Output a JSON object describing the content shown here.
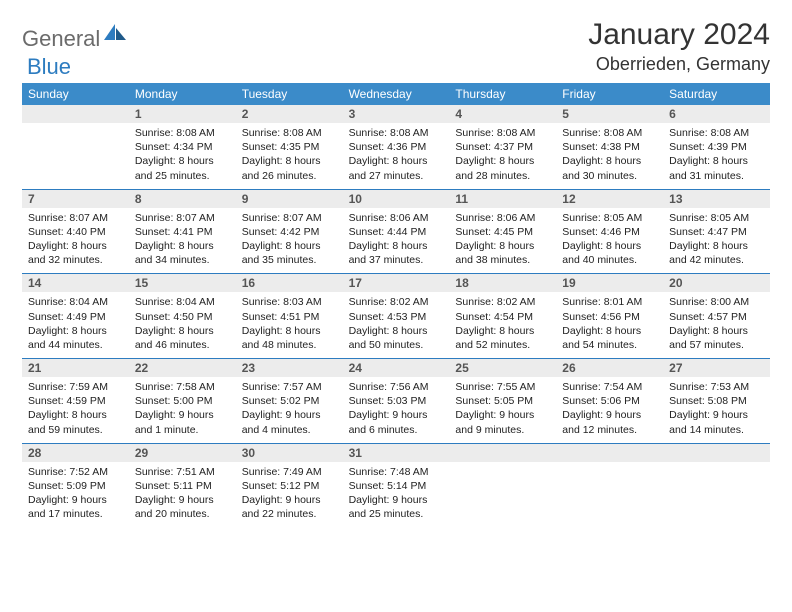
{
  "brand": {
    "part1": "General",
    "part2": "Blue"
  },
  "title": "January 2024",
  "location": "Oberrieden, Germany",
  "colors": {
    "header_bg": "#3b8bc9",
    "accent": "#2d7cc0",
    "daynum_bg": "#ececec",
    "text": "#222222",
    "logo_gray": "#6b6b6b"
  },
  "weekdays": [
    "Sunday",
    "Monday",
    "Tuesday",
    "Wednesday",
    "Thursday",
    "Friday",
    "Saturday"
  ],
  "weeks": [
    [
      {
        "num": "",
        "lines": []
      },
      {
        "num": "1",
        "lines": [
          "Sunrise: 8:08 AM",
          "Sunset: 4:34 PM",
          "Daylight: 8 hours",
          "and 25 minutes."
        ]
      },
      {
        "num": "2",
        "lines": [
          "Sunrise: 8:08 AM",
          "Sunset: 4:35 PM",
          "Daylight: 8 hours",
          "and 26 minutes."
        ]
      },
      {
        "num": "3",
        "lines": [
          "Sunrise: 8:08 AM",
          "Sunset: 4:36 PM",
          "Daylight: 8 hours",
          "and 27 minutes."
        ]
      },
      {
        "num": "4",
        "lines": [
          "Sunrise: 8:08 AM",
          "Sunset: 4:37 PM",
          "Daylight: 8 hours",
          "and 28 minutes."
        ]
      },
      {
        "num": "5",
        "lines": [
          "Sunrise: 8:08 AM",
          "Sunset: 4:38 PM",
          "Daylight: 8 hours",
          "and 30 minutes."
        ]
      },
      {
        "num": "6",
        "lines": [
          "Sunrise: 8:08 AM",
          "Sunset: 4:39 PM",
          "Daylight: 8 hours",
          "and 31 minutes."
        ]
      }
    ],
    [
      {
        "num": "7",
        "lines": [
          "Sunrise: 8:07 AM",
          "Sunset: 4:40 PM",
          "Daylight: 8 hours",
          "and 32 minutes."
        ]
      },
      {
        "num": "8",
        "lines": [
          "Sunrise: 8:07 AM",
          "Sunset: 4:41 PM",
          "Daylight: 8 hours",
          "and 34 minutes."
        ]
      },
      {
        "num": "9",
        "lines": [
          "Sunrise: 8:07 AM",
          "Sunset: 4:42 PM",
          "Daylight: 8 hours",
          "and 35 minutes."
        ]
      },
      {
        "num": "10",
        "lines": [
          "Sunrise: 8:06 AM",
          "Sunset: 4:44 PM",
          "Daylight: 8 hours",
          "and 37 minutes."
        ]
      },
      {
        "num": "11",
        "lines": [
          "Sunrise: 8:06 AM",
          "Sunset: 4:45 PM",
          "Daylight: 8 hours",
          "and 38 minutes."
        ]
      },
      {
        "num": "12",
        "lines": [
          "Sunrise: 8:05 AM",
          "Sunset: 4:46 PM",
          "Daylight: 8 hours",
          "and 40 minutes."
        ]
      },
      {
        "num": "13",
        "lines": [
          "Sunrise: 8:05 AM",
          "Sunset: 4:47 PM",
          "Daylight: 8 hours",
          "and 42 minutes."
        ]
      }
    ],
    [
      {
        "num": "14",
        "lines": [
          "Sunrise: 8:04 AM",
          "Sunset: 4:49 PM",
          "Daylight: 8 hours",
          "and 44 minutes."
        ]
      },
      {
        "num": "15",
        "lines": [
          "Sunrise: 8:04 AM",
          "Sunset: 4:50 PM",
          "Daylight: 8 hours",
          "and 46 minutes."
        ]
      },
      {
        "num": "16",
        "lines": [
          "Sunrise: 8:03 AM",
          "Sunset: 4:51 PM",
          "Daylight: 8 hours",
          "and 48 minutes."
        ]
      },
      {
        "num": "17",
        "lines": [
          "Sunrise: 8:02 AM",
          "Sunset: 4:53 PM",
          "Daylight: 8 hours",
          "and 50 minutes."
        ]
      },
      {
        "num": "18",
        "lines": [
          "Sunrise: 8:02 AM",
          "Sunset: 4:54 PM",
          "Daylight: 8 hours",
          "and 52 minutes."
        ]
      },
      {
        "num": "19",
        "lines": [
          "Sunrise: 8:01 AM",
          "Sunset: 4:56 PM",
          "Daylight: 8 hours",
          "and 54 minutes."
        ]
      },
      {
        "num": "20",
        "lines": [
          "Sunrise: 8:00 AM",
          "Sunset: 4:57 PM",
          "Daylight: 8 hours",
          "and 57 minutes."
        ]
      }
    ],
    [
      {
        "num": "21",
        "lines": [
          "Sunrise: 7:59 AM",
          "Sunset: 4:59 PM",
          "Daylight: 8 hours",
          "and 59 minutes."
        ]
      },
      {
        "num": "22",
        "lines": [
          "Sunrise: 7:58 AM",
          "Sunset: 5:00 PM",
          "Daylight: 9 hours",
          "and 1 minute."
        ]
      },
      {
        "num": "23",
        "lines": [
          "Sunrise: 7:57 AM",
          "Sunset: 5:02 PM",
          "Daylight: 9 hours",
          "and 4 minutes."
        ]
      },
      {
        "num": "24",
        "lines": [
          "Sunrise: 7:56 AM",
          "Sunset: 5:03 PM",
          "Daylight: 9 hours",
          "and 6 minutes."
        ]
      },
      {
        "num": "25",
        "lines": [
          "Sunrise: 7:55 AM",
          "Sunset: 5:05 PM",
          "Daylight: 9 hours",
          "and 9 minutes."
        ]
      },
      {
        "num": "26",
        "lines": [
          "Sunrise: 7:54 AM",
          "Sunset: 5:06 PM",
          "Daylight: 9 hours",
          "and 12 minutes."
        ]
      },
      {
        "num": "27",
        "lines": [
          "Sunrise: 7:53 AM",
          "Sunset: 5:08 PM",
          "Daylight: 9 hours",
          "and 14 minutes."
        ]
      }
    ],
    [
      {
        "num": "28",
        "lines": [
          "Sunrise: 7:52 AM",
          "Sunset: 5:09 PM",
          "Daylight: 9 hours",
          "and 17 minutes."
        ]
      },
      {
        "num": "29",
        "lines": [
          "Sunrise: 7:51 AM",
          "Sunset: 5:11 PM",
          "Daylight: 9 hours",
          "and 20 minutes."
        ]
      },
      {
        "num": "30",
        "lines": [
          "Sunrise: 7:49 AM",
          "Sunset: 5:12 PM",
          "Daylight: 9 hours",
          "and 22 minutes."
        ]
      },
      {
        "num": "31",
        "lines": [
          "Sunrise: 7:48 AM",
          "Sunset: 5:14 PM",
          "Daylight: 9 hours",
          "and 25 minutes."
        ]
      },
      {
        "num": "",
        "lines": []
      },
      {
        "num": "",
        "lines": []
      },
      {
        "num": "",
        "lines": []
      }
    ]
  ]
}
